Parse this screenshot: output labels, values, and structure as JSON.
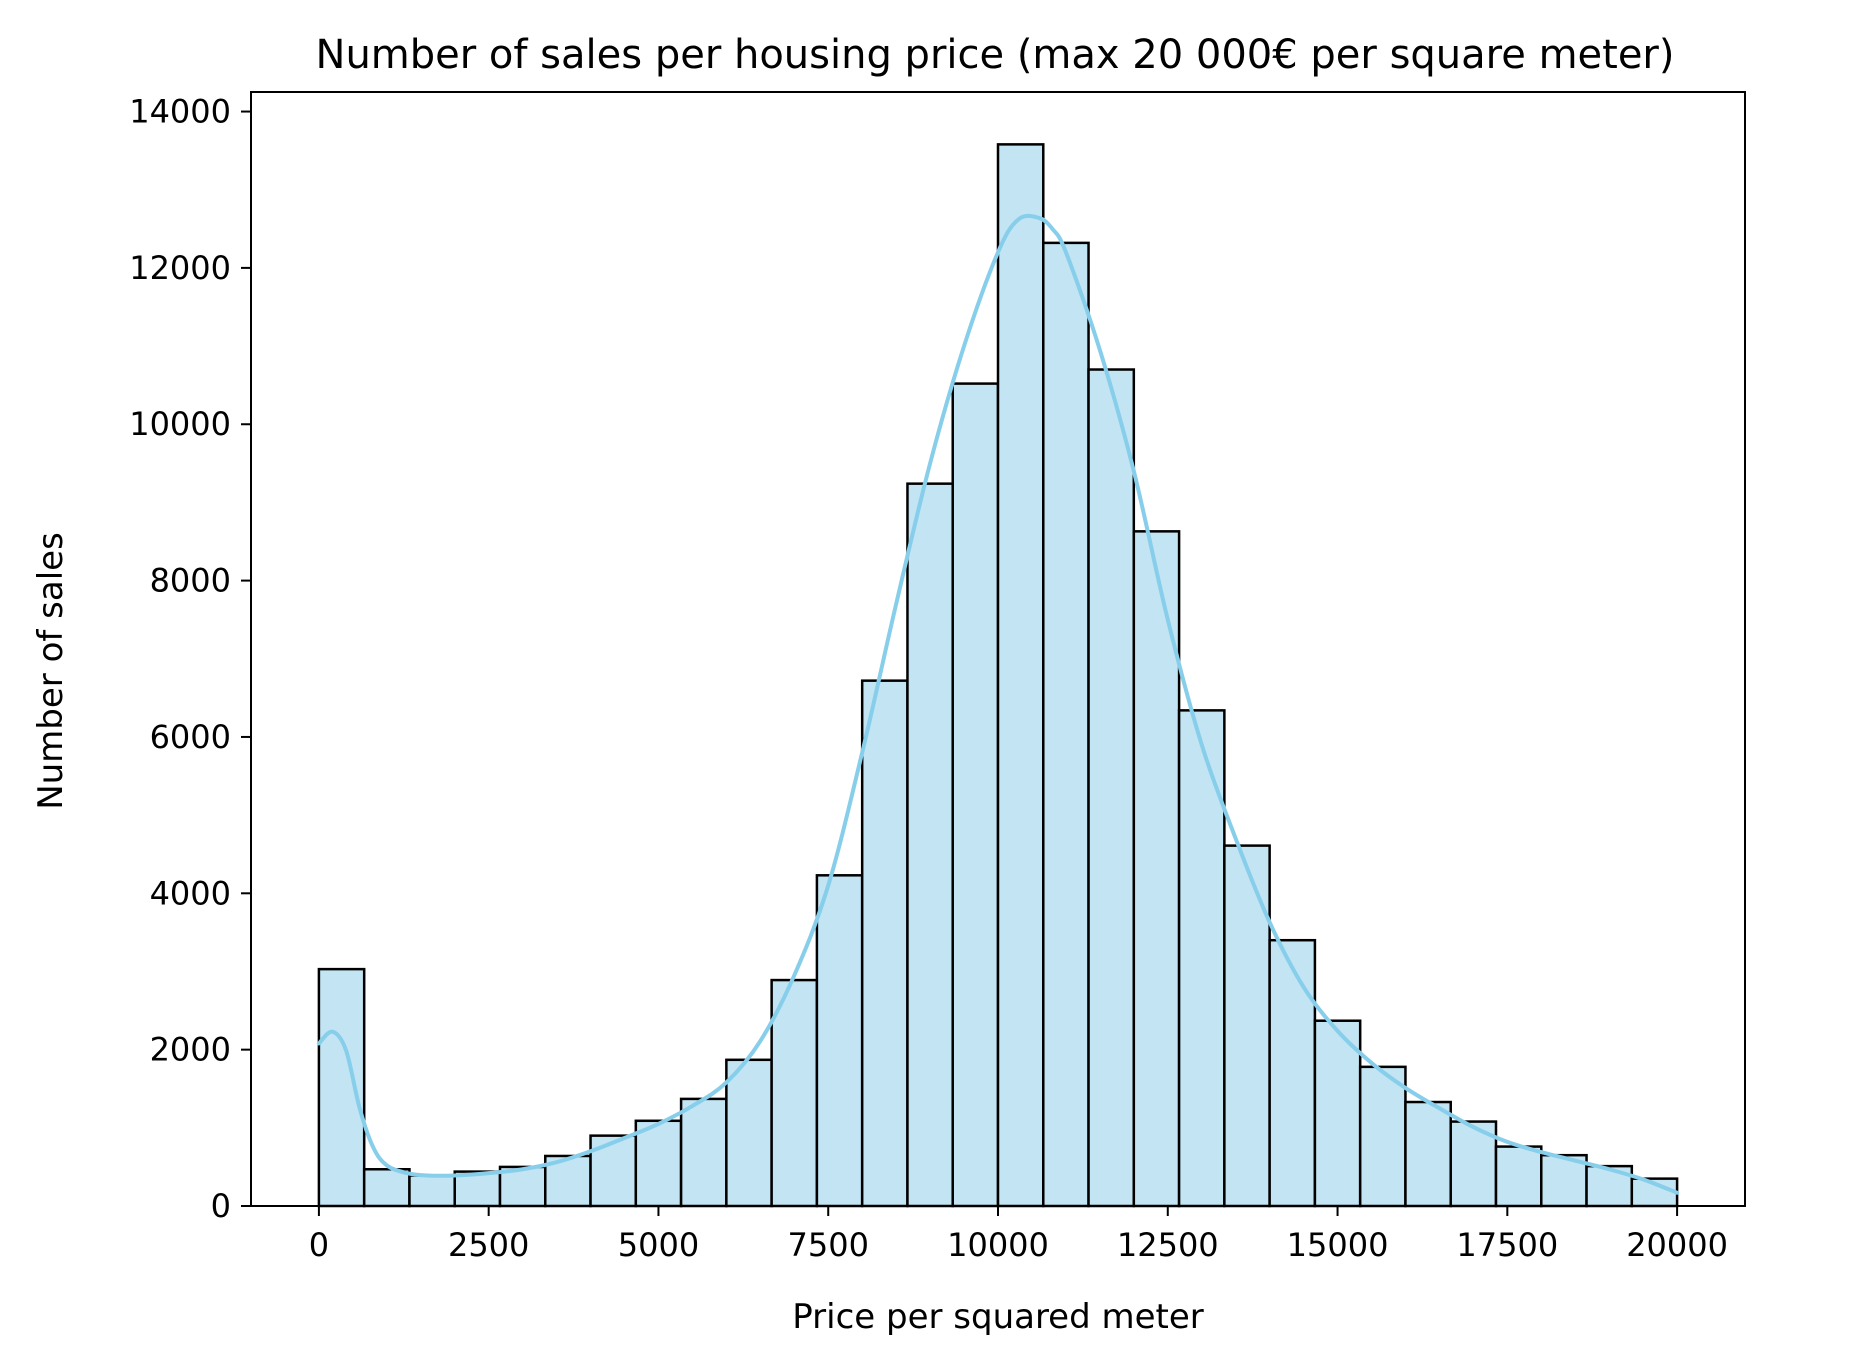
{
  "chart_data": {
    "type": "bar",
    "title": "Number of sales per housing price (max 20 000€ per square meter)",
    "xlabel": "Price per squared meter",
    "ylabel": "Number of sales",
    "xlim": [
      -1000,
      21000
    ],
    "ylim": [
      0,
      14250
    ],
    "xticks": [
      0,
      2500,
      5000,
      7500,
      10000,
      12500,
      15000,
      17500,
      20000
    ],
    "yticks": [
      0,
      2000,
      4000,
      6000,
      8000,
      10000,
      12000,
      14000
    ],
    "grid": false,
    "bin_edges": [
      0,
      666.67,
      1333.33,
      2000,
      2666.67,
      3333.33,
      4000,
      4666.67,
      5333.33,
      6000,
      6666.67,
      7333.33,
      8000,
      8666.67,
      9333.33,
      10000,
      10666.67,
      11333.33,
      12000,
      12666.67,
      13333.33,
      14000,
      14666.67,
      15333.33,
      16000,
      16666.67,
      17333.33,
      18000,
      18666.67,
      19333.33,
      20000
    ],
    "values": [
      3030,
      470,
      390,
      440,
      500,
      640,
      900,
      1090,
      1370,
      1870,
      2890,
      4230,
      6720,
      9240,
      10520,
      13580,
      12320,
      10700,
      8630,
      6340,
      4610,
      3400,
      2370,
      1780,
      1330,
      1080,
      760,
      650,
      510,
      350
    ],
    "kde": {
      "x": [
        0,
        200,
        400,
        600,
        800,
        1000,
        1300,
        1600,
        2000,
        2500,
        3000,
        3500,
        4000,
        4500,
        5000,
        5500,
        6000,
        6500,
        7000,
        7500,
        8000,
        8500,
        9000,
        9500,
        10000,
        10300,
        10600,
        10800,
        11000,
        11500,
        12000,
        12500,
        13000,
        13500,
        14000,
        14500,
        15000,
        15500,
        16000,
        16500,
        17000,
        17500,
        18000,
        18500,
        19000,
        19500,
        20000
      ],
      "y": [
        2080,
        2230,
        1990,
        1250,
        750,
        520,
        420,
        390,
        390,
        420,
        470,
        560,
        700,
        870,
        1050,
        1280,
        1580,
        2110,
        2950,
        4100,
        5800,
        7700,
        9500,
        11000,
        12200,
        12620,
        12640,
        12500,
        12200,
        10950,
        9400,
        7500,
        5900,
        4700,
        3630,
        2800,
        2240,
        1830,
        1510,
        1250,
        1010,
        820,
        690,
        580,
        470,
        340,
        170
      ]
    },
    "colors": {
      "bar_fill": "#c2e4f3",
      "bar_edge": "#000000",
      "kde_line": "#87ceeb"
    }
  }
}
